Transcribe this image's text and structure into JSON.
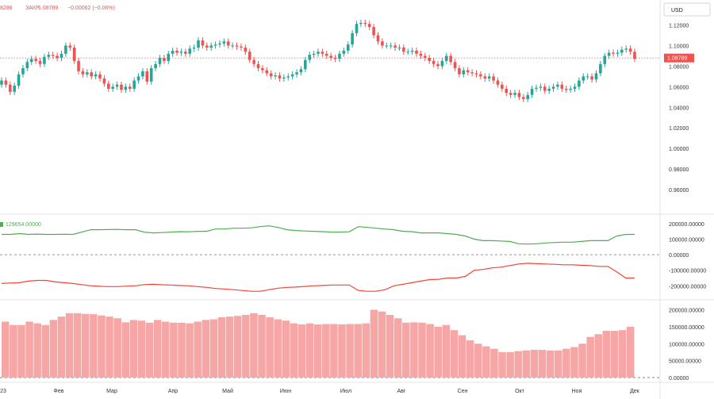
{
  "header": {
    "left_fragment": "8286",
    "close_label": "ЗАКР",
    "close_value": "1.08789",
    "change": "−0.00062 (−0.06%)",
    "currency": "USD",
    "last_price_tag": "1.08789"
  },
  "colors": {
    "up": "#26a69a",
    "down": "#ef5350",
    "price_line": "#ef5350",
    "long_line": "#4caf50",
    "short_line": "#f44336",
    "histogram": "#f7a6a6"
  },
  "chart_data": [
    {
      "type": "candlestick",
      "title": "",
      "ylim": [
        0.94,
        1.135
      ],
      "y_ticks": [
        "1.12000",
        "1.10000",
        "1.08000",
        "1.06000",
        "1.04000",
        "1.02000",
        "1.00000",
        "0.98000",
        "0.96000"
      ],
      "last_price": 1.08789,
      "x_tick_labels": [
        "23",
        "Фев",
        "Мар",
        "Апр",
        "Май",
        "Июн",
        "Июл",
        "Авг",
        "Сен",
        "Окт",
        "Ноя",
        "Дек"
      ],
      "close_values": [
        1.066,
        1.062,
        1.055,
        1.061,
        1.072,
        1.078,
        1.084,
        1.087,
        1.085,
        1.082,
        1.089,
        1.091,
        1.09,
        1.088,
        1.092,
        1.1,
        1.098,
        1.085,
        1.075,
        1.072,
        1.074,
        1.07,
        1.072,
        1.068,
        1.063,
        1.058,
        1.06,
        1.062,
        1.057,
        1.06,
        1.058,
        1.066,
        1.07,
        1.075,
        1.065,
        1.078,
        1.082,
        1.088,
        1.085,
        1.092,
        1.095,
        1.093,
        1.094,
        1.092,
        1.097,
        1.098,
        1.105,
        1.1,
        1.098,
        1.1,
        1.101,
        1.102,
        1.104,
        1.1,
        1.1,
        1.099,
        1.098,
        1.094,
        1.086,
        1.082,
        1.078,
        1.076,
        1.073,
        1.07,
        1.071,
        1.068,
        1.069,
        1.07,
        1.072,
        1.074,
        1.077,
        1.086,
        1.091,
        1.092,
        1.094,
        1.092,
        1.09,
        1.088,
        1.087,
        1.092,
        1.095,
        1.101,
        1.112,
        1.121,
        1.122,
        1.121,
        1.118,
        1.11,
        1.104,
        1.1,
        1.1,
        1.1,
        1.098,
        1.098,
        1.094,
        1.094,
        1.095,
        1.092,
        1.09,
        1.088,
        1.085,
        1.082,
        1.08,
        1.085,
        1.09,
        1.084,
        1.078,
        1.072,
        1.076,
        1.074,
        1.073,
        1.072,
        1.07,
        1.068,
        1.07,
        1.066,
        1.062,
        1.058,
        1.054,
        1.052,
        1.054,
        1.05,
        1.048,
        1.052,
        1.058,
        1.059,
        1.06,
        1.056,
        1.058,
        1.06,
        1.062,
        1.058,
        1.057,
        1.058,
        1.06,
        1.066,
        1.07,
        1.07,
        1.067,
        1.073,
        1.082,
        1.09,
        1.093,
        1.092,
        1.093,
        1.096,
        1.097,
        1.094,
        1.087
      ]
    },
    {
      "type": "line",
      "title": "",
      "legend_value": "129654.00000",
      "ylim": [
        -290000,
        260000
      ],
      "y_ticks": [
        "200000.00000",
        "100000.00000",
        "0.00000",
        "-100000.00000",
        "-200000.00000"
      ],
      "series": [
        {
          "values": [
            130000,
            130000,
            135000,
            130000,
            132000,
            130000,
            130000,
            131000,
            130000,
            145000,
            160000,
            160000,
            161000,
            162000,
            160000,
            160000,
            145000,
            140000,
            142000,
            145000,
            148000,
            147000,
            150000,
            150000,
            165000,
            165000,
            170000,
            170000,
            172000,
            180000,
            185000,
            175000,
            160000,
            155000,
            152000,
            150000,
            148000,
            145000,
            145000,
            147000,
            180000,
            175000,
            170000,
            165000,
            160000,
            150000,
            148000,
            140000,
            140000,
            140000,
            135000,
            130000,
            120000,
            100000,
            90000,
            90000,
            88000,
            85000,
            70000,
            68000,
            70000,
            75000,
            78000,
            80000,
            80000,
            85000,
            90000,
            90000,
            90000,
            120000,
            130000,
            130000
          ]
        },
        {
          "values": [
            -185000,
            -182000,
            -180000,
            -170000,
            -165000,
            -165000,
            -175000,
            -180000,
            -185000,
            -192000,
            -200000,
            -203000,
            -205000,
            -205000,
            -202000,
            -200000,
            -192000,
            -190000,
            -193000,
            -195000,
            -198000,
            -200000,
            -205000,
            -210000,
            -217000,
            -220000,
            -225000,
            -230000,
            -235000,
            -235000,
            -225000,
            -215000,
            -210000,
            -208000,
            -204000,
            -200000,
            -198000,
            -195000,
            -195000,
            -195000,
            -230000,
            -235000,
            -235000,
            -225000,
            -200000,
            -190000,
            -180000,
            -170000,
            -160000,
            -158000,
            -150000,
            -150000,
            -140000,
            -100000,
            -95000,
            -85000,
            -80000,
            -70000,
            -60000,
            -55000,
            -58000,
            -60000,
            -62000,
            -65000,
            -65000,
            -68000,
            -70000,
            -75000,
            -75000,
            -110000,
            -150000,
            -150000
          ]
        }
      ]
    },
    {
      "type": "bar",
      "title": "",
      "ylim": [
        0,
        220000
      ],
      "y_ticks": [
        "200000.00000",
        "150000.00000",
        "100000.00000",
        "50000.00000",
        "0.00000"
      ],
      "values": [
        165000,
        155000,
        155000,
        165000,
        160000,
        155000,
        170000,
        180000,
        190000,
        190000,
        188000,
        187000,
        183000,
        180000,
        175000,
        163000,
        170000,
        168000,
        162000,
        170000,
        165000,
        162000,
        162000,
        160000,
        165000,
        170000,
        172000,
        178000,
        180000,
        182000,
        185000,
        190000,
        185000,
        178000,
        172000,
        168000,
        160000,
        157000,
        160000,
        157000,
        158000,
        158000,
        157000,
        158000,
        158000,
        160000,
        200000,
        195000,
        185000,
        175000,
        162000,
        163000,
        162000,
        158000,
        150000,
        155000,
        140000,
        125000,
        110000,
        100000,
        92000,
        85000,
        75000,
        75000,
        78000,
        80000,
        82000,
        82000,
        80000,
        80000,
        85000,
        90000,
        100000,
        120000,
        128000,
        138000,
        138000,
        140000,
        150000
      ]
    }
  ]
}
